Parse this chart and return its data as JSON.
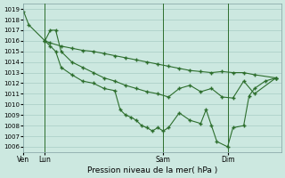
{
  "xlabel": "Pression niveau de la mer( hPa )",
  "bg_color": "#cce8e0",
  "grid_color": "#a8ccc4",
  "line_color": "#2d6e2d",
  "ylim": [
    1005.5,
    1019.5
  ],
  "yticks": [
    1006,
    1007,
    1008,
    1009,
    1010,
    1011,
    1012,
    1013,
    1014,
    1015,
    1016,
    1017,
    1018,
    1019
  ],
  "xtick_labels": [
    "Ven",
    "Lun",
    "Sam",
    "Dim"
  ],
  "xtick_positions": [
    0,
    2.0,
    13.0,
    19.0
  ],
  "vlines": [
    2.0,
    13.0,
    19.0
  ],
  "xlim": [
    0,
    24
  ],
  "series1_x": [
    0,
    0.5,
    2.0,
    2.5,
    3.5,
    4.5,
    5.5,
    6.5,
    7.5,
    8.5,
    9.5,
    10.5,
    11.5,
    12.5,
    13.5,
    14.5,
    15.5,
    16.5,
    17.5,
    18.5,
    19.5,
    20.5,
    21.5,
    23.5
  ],
  "series1_y": [
    1018.8,
    1017.5,
    1016.0,
    1015.8,
    1015.5,
    1015.3,
    1015.1,
    1015.0,
    1014.8,
    1014.6,
    1014.4,
    1014.2,
    1014.0,
    1013.8,
    1013.6,
    1013.4,
    1013.2,
    1013.1,
    1013.0,
    1013.1,
    1013.0,
    1013.0,
    1012.8,
    1012.5
  ],
  "series2_x": [
    2.0,
    2.5,
    3.0,
    3.5,
    4.5,
    5.5,
    6.5,
    7.5,
    8.5,
    9.5,
    10.5,
    11.5,
    12.5,
    13.5,
    14.5,
    15.5,
    16.5,
    17.5,
    18.5,
    19.5,
    20.5,
    21.5,
    23.5
  ],
  "series2_y": [
    1016.0,
    1017.0,
    1017.0,
    1015.0,
    1014.0,
    1013.5,
    1013.0,
    1012.5,
    1012.2,
    1011.8,
    1011.5,
    1011.2,
    1011.0,
    1010.7,
    1011.5,
    1011.8,
    1011.2,
    1011.5,
    1010.7,
    1010.6,
    1012.2,
    1011.0,
    1012.5
  ],
  "series3_x": [
    2.0,
    2.5,
    3.0,
    3.5,
    4.5,
    5.5,
    6.5,
    7.5,
    8.5,
    9.0,
    9.5,
    10.0,
    10.5,
    11.0,
    11.5,
    12.0,
    12.5,
    13.0,
    13.5,
    14.5,
    15.5,
    16.5,
    17.0,
    17.5,
    18.0,
    19.0,
    19.5,
    20.5,
    21.0,
    21.5,
    22.5,
    23.5
  ],
  "series3_y": [
    1016.0,
    1015.5,
    1015.0,
    1013.5,
    1012.8,
    1012.2,
    1012.0,
    1011.5,
    1011.3,
    1009.5,
    1009.0,
    1008.8,
    1008.5,
    1008.0,
    1007.8,
    1007.5,
    1007.8,
    1007.5,
    1007.8,
    1009.2,
    1008.5,
    1008.2,
    1009.5,
    1008.0,
    1006.5,
    1006.0,
    1007.8,
    1008.0,
    1010.8,
    1011.5,
    1012.2,
    1012.5
  ]
}
